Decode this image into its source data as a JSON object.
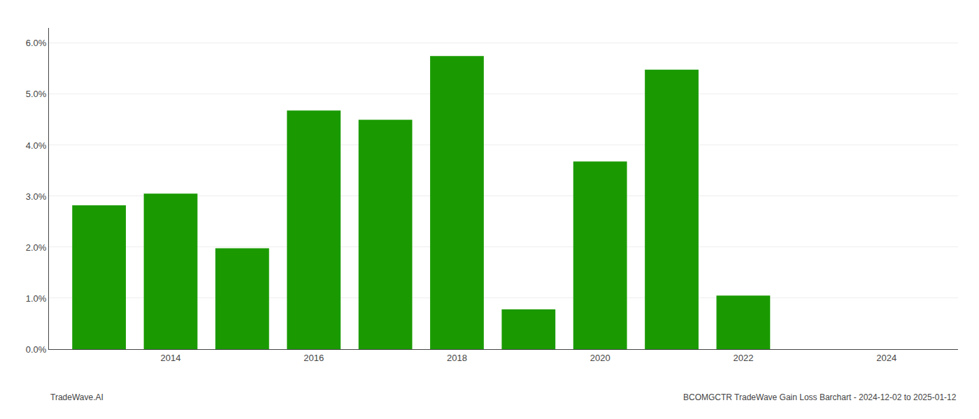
{
  "chart_data": {
    "type": "bar",
    "x": [
      2013,
      2014,
      2015,
      2016,
      2017,
      2018,
      2019,
      2020,
      2021,
      2022
    ],
    "values": [
      0.0282,
      0.0305,
      0.0198,
      0.0468,
      0.045,
      0.0575,
      0.0078,
      0.0368,
      0.0548,
      0.0105
    ],
    "color": "#1a9a00",
    "xlim": [
      2012.3,
      2025.0
    ],
    "xticks": [
      2014,
      2016,
      2018,
      2020,
      2022,
      2024
    ],
    "ylim": [
      0.0,
      0.063
    ],
    "yticks": [
      {
        "value": 0.0,
        "label": "0.0%"
      },
      {
        "value": 0.01,
        "label": "1.0%"
      },
      {
        "value": 0.02,
        "label": "2.0%"
      },
      {
        "value": 0.03,
        "label": "3.0%"
      },
      {
        "value": 0.04,
        "label": "4.0%"
      },
      {
        "value": 0.05,
        "label": "5.0%"
      },
      {
        "value": 0.06,
        "label": "6.0%"
      }
    ],
    "grid": true,
    "annotations": [
      "TradeWave.AI",
      "BCOMGCTR TradeWave Gain Loss Barchart - 2024-12-02 to 2025-01-12"
    ]
  }
}
